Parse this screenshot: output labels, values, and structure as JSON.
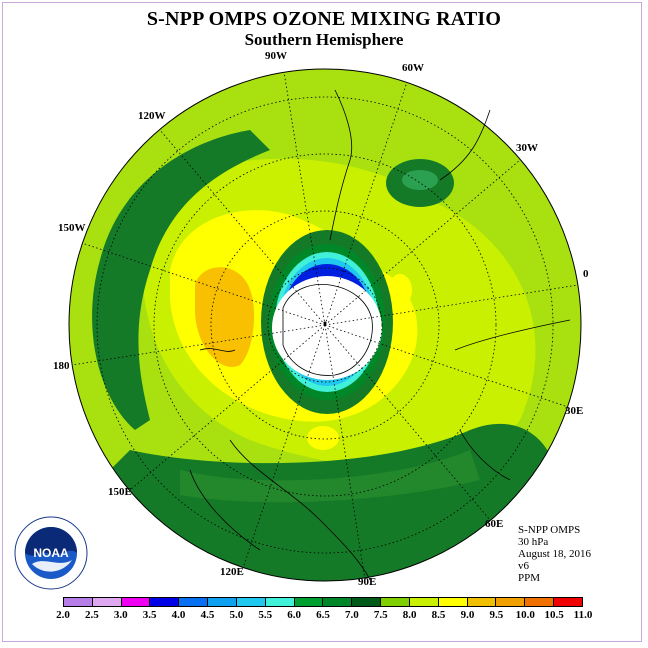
{
  "title": "S-NPP OMPS OZONE MIXING RATIO",
  "subtitle": "Southern Hemisphere",
  "lon_labels": {
    "w90": "90W",
    "e60": "60W",
    "w30": "30W",
    "w120": "120W",
    "w150": "150W",
    "zero": "0",
    "w180": "180",
    "e30": "30E",
    "e150": "150E",
    "e60b": "60E",
    "e120": "120E",
    "e90": "90E"
  },
  "info": {
    "instrument": "S-NPP OMPS",
    "level": "30 hPa",
    "date": "August 18, 2016",
    "version": "v6",
    "units": "PPM"
  },
  "logo_text": "NOAA",
  "colorbar": {
    "colors": [
      "#b87ee8",
      "#dda8f0",
      "#f000f0",
      "#0000e8",
      "#0870f0",
      "#10a0f0",
      "#20c8f0",
      "#40f0d8",
      "#00a030",
      "#008828",
      "#005a18",
      "#80d000",
      "#c8f000",
      "#ffff00",
      "#f0c000",
      "#f0a000",
      "#f07000",
      "#f00000",
      "#806040"
    ],
    "ticks": [
      "2.0",
      "2.5",
      "3.0",
      "3.5",
      "4.0",
      "4.5",
      "5.0",
      "5.5",
      "6.0",
      "6.5",
      "7.0",
      "7.5",
      "8.0",
      "8.5",
      "9.0",
      "9.5",
      "10.0",
      "10.5",
      "11.0"
    ]
  },
  "field_colors": {
    "outer": "#a8e010",
    "light_green": "#c8f000",
    "dark_green": "#147a28",
    "yellow": "#ffff00",
    "orange": "#f8c000",
    "hole_white": "#ffffff",
    "hole_blue": "#0020e0",
    "hole_cyan": "#20c8f0"
  }
}
